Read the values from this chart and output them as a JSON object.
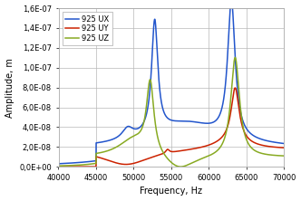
{
  "title": "",
  "xlabel": "Frequency, Hz",
  "ylabel": "Amplitude, m",
  "xlim": [
    40000,
    70000
  ],
  "ylim": [
    0,
    1.6e-07
  ],
  "yticks": [
    0,
    2e-08,
    4e-08,
    6e-08,
    8e-08,
    1e-07,
    1.2e-07,
    1.4e-07,
    1.6e-07
  ],
  "ytick_labels": [
    "0,0E+00",
    "2,0E-08",
    "4,0E-08",
    "6,0E-08",
    "8,0E-08",
    "1,0E-07",
    "1,2E-07",
    "1,4E-07",
    "1,6E-07"
  ],
  "xticks": [
    40000,
    45000,
    50000,
    55000,
    60000,
    65000,
    70000
  ],
  "legend": [
    "925 UX",
    "925 UY",
    "925 UZ"
  ],
  "colors": [
    "#2255cc",
    "#cc2200",
    "#88aa22"
  ],
  "line_width": 1.1,
  "background_color": "#ffffff",
  "grid_color": "#b8b8b8"
}
